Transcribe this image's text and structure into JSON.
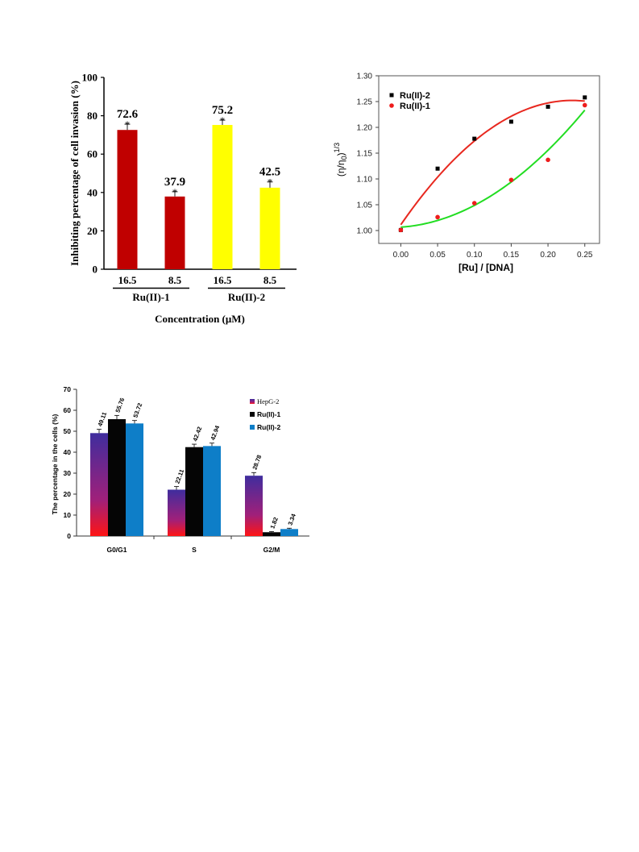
{
  "chart_data": [
    {
      "type": "bar",
      "ylabel": "Inhibiting percentage of cell invasion (%)",
      "xlabel": "Concentration (μM)",
      "ylim": [
        0,
        100
      ],
      "yticks": [
        "0",
        "20",
        "40",
        "60",
        "80",
        "100"
      ],
      "groups": [
        {
          "name": "Ru(II)-1",
          "bars": [
            {
              "conc": "16.5",
              "value": 72.6,
              "label": "72.6",
              "err": 3.0,
              "color": "#c00000",
              "sig": "*"
            },
            {
              "conc": "8.5",
              "value": 37.9,
              "label": "37.9",
              "err": 2.5,
              "color": "#c00000",
              "sig": "*"
            }
          ]
        },
        {
          "name": "Ru(II)-2",
          "bars": [
            {
              "conc": "16.5",
              "value": 75.2,
              "label": "75.2",
              "err": 2.5,
              "color": "#ffff00",
              "sig": "*"
            },
            {
              "conc": "8.5",
              "value": 42.5,
              "label": "42.5",
              "err": 3.0,
              "color": "#ffff00",
              "sig": "*"
            }
          ]
        }
      ]
    },
    {
      "type": "scatter",
      "xlabel": "[Ru] / [DNA]",
      "ylabel_base": "(η/η",
      "ylabel_sub": "0",
      "ylabel_close": ")",
      "ylabel_sup": "1/3",
      "xlim": [
        -0.03,
        0.27
      ],
      "ylim": [
        0.975,
        1.3
      ],
      "xticks": [
        "0.00",
        "0.05",
        "0.10",
        "0.15",
        "0.20",
        "0.25"
      ],
      "yticks": [
        "1.00",
        "1.05",
        "1.10",
        "1.15",
        "1.20",
        "1.25",
        "1.30"
      ],
      "series": [
        {
          "name": "Ru(II)-2",
          "marker": "square",
          "color": "#000000",
          "fit_color": "#e8281f",
          "x": [
            0.0,
            0.05,
            0.1,
            0.15,
            0.2,
            0.25
          ],
          "y": [
            1.001,
            1.12,
            1.178,
            1.211,
            1.24,
            1.258
          ]
        },
        {
          "name": "Ru(II)-1",
          "marker": "circle",
          "color": "#ee1c1c",
          "fit_color": "#22dd22",
          "x": [
            0.0,
            0.05,
            0.1,
            0.15,
            0.2,
            0.25
          ],
          "y": [
            1.001,
            1.026,
            1.053,
            1.098,
            1.137,
            1.243
          ]
        }
      ]
    },
    {
      "type": "bar",
      "ylabel": "The percentage in the cells (%)",
      "ylim": [
        0,
        70
      ],
      "yticks": [
        "0",
        "10",
        "20",
        "30",
        "40",
        "50",
        "60",
        "70"
      ],
      "categories": [
        "G0/G1",
        "S",
        "G2/M"
      ],
      "series": [
        {
          "name": "HepG-2",
          "values": [
            49.11,
            22.11,
            28.78
          ],
          "labels": [
            "49.11",
            "22.11",
            "28.78"
          ],
          "errs": [
            1.8,
            1.5,
            1.5
          ]
        },
        {
          "name": "Ru(II)-1",
          "values": [
            55.76,
            42.42,
            1.82
          ],
          "labels": [
            "55.76",
            "42.42",
            "1.82"
          ],
          "errs": [
            1.8,
            1.4,
            0.3
          ]
        },
        {
          "name": "Ru(II)-2",
          "values": [
            53.72,
            42.94,
            3.34
          ],
          "labels": [
            "53.72",
            "42.94",
            "3.34"
          ],
          "errs": [
            1.4,
            1.4,
            0.4
          ]
        }
      ],
      "colors": {
        "hepg2_top": "#3f2d9e",
        "hepg2_mid": "#a0207a",
        "hepg2_bottom": "#ff1414",
        "ru1": "#050505",
        "ru2": "#0e7ec8"
      }
    }
  ]
}
